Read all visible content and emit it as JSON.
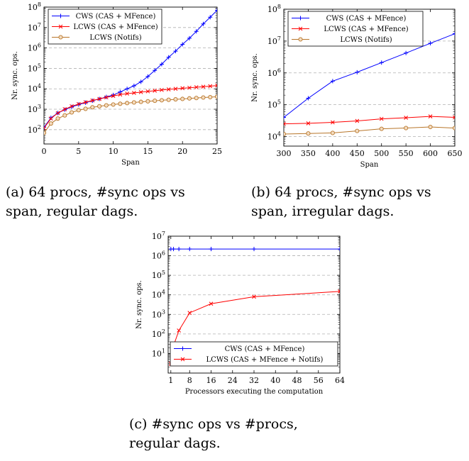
{
  "captions": {
    "a": [
      "(a) 64 procs, #sync ops vs",
      "span, regular dags."
    ],
    "b": [
      "(b) 64 procs, #sync ops vs",
      "span, irregular dags."
    ],
    "c": [
      "(c) #sync ops vs #procs,",
      "regular dags."
    ]
  },
  "chart_data": [
    {
      "id": "a",
      "type": "line",
      "xlabel": "Span",
      "ylabel": "Nr. sync. ops.",
      "xlim": [
        0,
        25
      ],
      "ylog": true,
      "ylim_exp": [
        1.3,
        8
      ],
      "yticks_exp": [
        2,
        3,
        4,
        5,
        6,
        7,
        8
      ],
      "xticks": [
        0,
        5,
        10,
        15,
        20,
        25
      ],
      "grid": "horizontal dashed",
      "legend_position": "top-left",
      "series": [
        {
          "name": "CWS (CAS + MFence)",
          "color": "#0000ff",
          "marker": "plus",
          "x": [
            0,
            1,
            2,
            3,
            4,
            5,
            6,
            7,
            8,
            9,
            10,
            11,
            12,
            13,
            14,
            15,
            16,
            17,
            18,
            19,
            20,
            21,
            22,
            23,
            24,
            25
          ],
          "y": [
            130,
            380,
            650,
            950,
            1300,
            1700,
            2100,
            2600,
            3200,
            4000,
            5000,
            7000,
            10000,
            14000,
            22000,
            40000,
            80000,
            160000,
            350000,
            700000,
            1500000,
            3000000,
            6500000,
            15000000,
            32000000,
            70000000
          ]
        },
        {
          "name": "LCWS (CAS + MFence)",
          "color": "#ff0000",
          "marker": "x",
          "x": [
            0,
            1,
            2,
            3,
            4,
            5,
            6,
            7,
            8,
            9,
            10,
            11,
            12,
            13,
            14,
            15,
            16,
            17,
            18,
            19,
            20,
            21,
            22,
            23,
            24,
            25
          ],
          "y": [
            120,
            350,
            650,
            1000,
            1400,
            1800,
            2200,
            2700,
            3200,
            3800,
            4500,
            5200,
            5800,
            6300,
            6900,
            7500,
            8100,
            8800,
            9400,
            10000,
            10700,
            11300,
            12000,
            12700,
            13500,
            14500
          ]
        },
        {
          "name": "LCWS (Notifs)",
          "color": "#b8762a",
          "marker": "circle",
          "x": [
            0,
            1,
            2,
            3,
            4,
            5,
            6,
            7,
            8,
            9,
            10,
            11,
            12,
            13,
            14,
            15,
            16,
            17,
            18,
            19,
            20,
            21,
            22,
            23,
            24,
            25
          ],
          "y": [
            70,
            200,
            350,
            500,
            700,
            900,
            1050,
            1250,
            1400,
            1550,
            1700,
            1850,
            2000,
            2150,
            2300,
            2450,
            2600,
            2750,
            2900,
            3050,
            3200,
            3400,
            3550,
            3750,
            3900,
            4100
          ]
        }
      ]
    },
    {
      "id": "b",
      "type": "line",
      "xlabel": "Span",
      "ylabel": "Nr. sync. ops.",
      "xlim": [
        300,
        650
      ],
      "ylog": true,
      "ylim_exp": [
        3.7,
        8
      ],
      "yticks_exp": [
        4,
        5,
        6,
        7,
        8
      ],
      "xticks": [
        300,
        350,
        400,
        450,
        500,
        550,
        600,
        650
      ],
      "grid": "horizontal dashed",
      "legend_position": "top-left",
      "series": [
        {
          "name": "CWS (CAS + MFence)",
          "color": "#0000ff",
          "marker": "plus",
          "x": [
            300,
            350,
            400,
            450,
            500,
            550,
            600,
            650
          ],
          "y": [
            40000,
            160000,
            550000,
            1050000,
            2100000,
            4200000,
            8500000,
            17000000
          ]
        },
        {
          "name": "LCWS (CAS + MFence)",
          "color": "#ff0000",
          "marker": "x",
          "x": [
            300,
            350,
            400,
            450,
            500,
            550,
            600,
            650
          ],
          "y": [
            25000,
            26000,
            28000,
            31000,
            36000,
            39000,
            43000,
            40000
          ]
        },
        {
          "name": "LCWS (Notifs)",
          "color": "#b8762a",
          "marker": "circle",
          "x": [
            300,
            350,
            400,
            450,
            500,
            550,
            600,
            650
          ],
          "y": [
            12000,
            12500,
            13000,
            15000,
            17500,
            18500,
            20000,
            18500
          ]
        }
      ]
    },
    {
      "id": "c",
      "type": "line",
      "xlabel": "Processors executing the computation",
      "ylabel": "Nr. sync. ops.",
      "xlim": [
        0,
        64
      ],
      "ylog": true,
      "ylim_exp": [
        0,
        7
      ],
      "yticks_exp": [
        1,
        2,
        3,
        4,
        5,
        6,
        7
      ],
      "xticks": [
        1,
        8,
        16,
        24,
        32,
        40,
        48,
        56,
        64
      ],
      "grid": "horizontal dashed",
      "legend_position": "bottom-right",
      "series": [
        {
          "name": "CWS (CAS + MFence)",
          "color": "#0000ff",
          "marker": "plus",
          "x": [
            1,
            2,
            4,
            8,
            16,
            32,
            64
          ],
          "y": [
            2200000,
            2200000,
            2200000,
            2200000,
            2200000,
            2200000,
            2200000
          ]
        },
        {
          "name": "LCWS (CAS + MFence + Notifs)",
          "color": "#ff0000",
          "marker": "x",
          "x": [
            1,
            2,
            4,
            8,
            16,
            32,
            64
          ],
          "y": [
            3,
            25,
            150,
            1200,
            3500,
            8000,
            15000
          ]
        }
      ]
    }
  ]
}
